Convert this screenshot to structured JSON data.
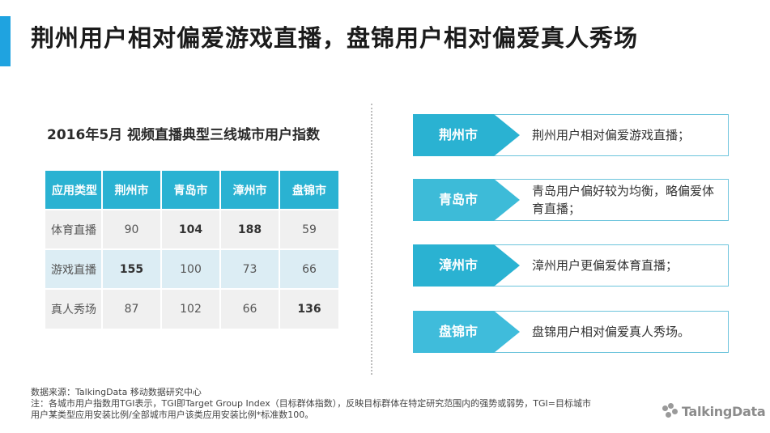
{
  "title": "荆州用户相对偏爱游戏直播，盘锦用户相对偏爱真人秀场",
  "table": {
    "title": "2016年5月 视频直播典型三线城市用户指数",
    "headers": [
      "应用类型",
      "荆州市",
      "青岛市",
      "漳州市",
      "盘锦市"
    ],
    "rows": [
      {
        "category": "体育直播",
        "values": [
          "90",
          "104",
          "188",
          "59"
        ],
        "bold": [
          false,
          true,
          true,
          false
        ]
      },
      {
        "category": "游戏直播",
        "values": [
          "155",
          "100",
          "73",
          "66"
        ],
        "bold": [
          true,
          false,
          false,
          false
        ]
      },
      {
        "category": "真人秀场",
        "values": [
          "87",
          "102",
          "66",
          "136"
        ],
        "bold": [
          false,
          false,
          false,
          true
        ]
      }
    ]
  },
  "cards": [
    {
      "city": "荆州市",
      "desc": "荆州用户相对偏爱游戏直播；"
    },
    {
      "city": "青岛市",
      "desc": "青岛用户偏好较为均衡，略偏爱体育直播；"
    },
    {
      "city": "漳州市",
      "desc": "漳州用户更偏爱体育直播；"
    },
    {
      "city": "盘锦市",
      "desc": "盘锦用户相对偏爱真人秀场。"
    }
  ],
  "notes": [
    "数据来源：TalkingData 移动数据研究中心",
    "注：各城市用户指数用TGI表示，TGI即Target Group Index（目标群体指数），反映目标群体在特定研究范围内的强势或弱势，TGI=目标城市",
    "用户某类型应用安装比例/全部城市用户该类应用安装比例*标准数100。"
  ],
  "logo": "TalkingData",
  "colors": {
    "accent": "#1fa3e0",
    "header": "#2ab2d2",
    "row_alt": "#dcedf4",
    "row": "#f0f0f0"
  }
}
